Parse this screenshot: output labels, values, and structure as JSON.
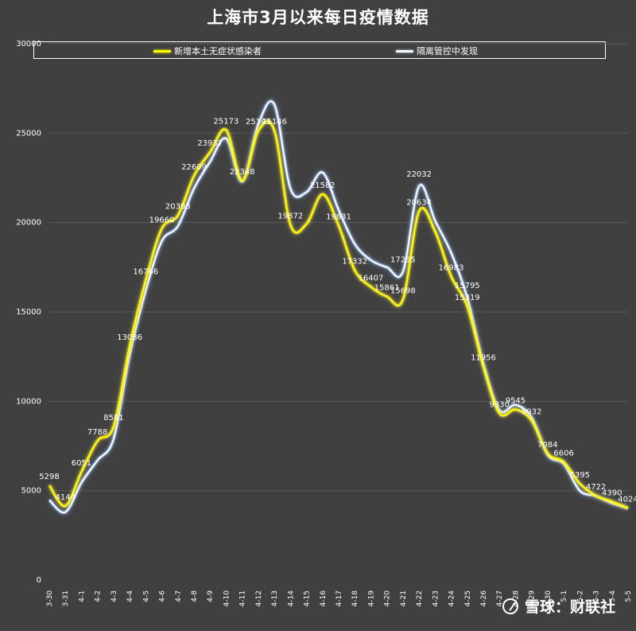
{
  "chart_data": {
    "type": "line",
    "title": "上海市3月以来每日疫情数据",
    "categories": [
      "3-30",
      "3-31",
      "4-1",
      "4-2",
      "4-3",
      "4-4",
      "4-5",
      "4-6",
      "4-7",
      "4-8",
      "4-9",
      "4-10",
      "4-11",
      "4-12",
      "4-13",
      "4-14",
      "4-15",
      "4-16",
      "4-17",
      "4-18",
      "4-19",
      "4-20",
      "4-21",
      "4-22",
      "4-23",
      "4-24",
      "4-25",
      "4-26",
      "4-27",
      "4-28",
      "4-29",
      "4-30",
      "5-1",
      "5-2",
      "5-3",
      "5-4",
      "5-5"
    ],
    "ylim": [
      0,
      30000
    ],
    "yticks": [
      0,
      5000,
      10000,
      15000,
      20000,
      25000,
      30000
    ],
    "legend_position": "top",
    "grid": true,
    "series": [
      {
        "name": "新增本土无症状感染者",
        "color": "#ffff00",
        "values": [
          5298,
          4144,
          6051,
          7788,
          8581,
          13086,
          16766,
          19660,
          20398,
          22609,
          23937,
          25173,
          22348,
          25141,
          25146,
          19872,
          19923,
          21582,
          19831,
          17332,
          16407,
          15861,
          15698,
          20634,
          19500,
          16983,
          15319,
          11956,
          9330,
          9545,
          8932,
          7084,
          6606,
          5395,
          4722,
          4390,
          4024
        ]
      },
      {
        "name": "隔离管控中发现",
        "color": "#ffffff",
        "values": [
          4477,
          3800,
          5450,
          6700,
          7900,
          12600,
          16200,
          18960,
          19800,
          21900,
          23400,
          24700,
          22300,
          25500,
          26600,
          21900,
          21700,
          22800,
          20700,
          18800,
          17900,
          17500,
          17255,
          22032,
          20100,
          18300,
          15795,
          12100,
          9500,
          9800,
          9100,
          7000,
          6500,
          5000,
          4700,
          4300,
          4024
        ]
      }
    ],
    "labels": [
      {
        "text": "5298",
        "s": 0,
        "i": 0
      },
      {
        "text": "4144",
        "s": 0,
        "i": 1
      },
      {
        "text": "6051",
        "s": 0,
        "i": 2
      },
      {
        "text": "7788",
        "s": 0,
        "i": 3
      },
      {
        "text": "8581",
        "s": 0,
        "i": 4
      },
      {
        "text": "13086",
        "s": 0,
        "i": 5
      },
      {
        "text": "16766",
        "s": 0,
        "i": 6
      },
      {
        "text": "19660",
        "s": 0,
        "i": 7
      },
      {
        "text": "20398",
        "s": 0,
        "i": 8
      },
      {
        "text": "22609",
        "s": 0,
        "i": 9
      },
      {
        "text": "23937",
        "s": 0,
        "i": 10
      },
      {
        "text": "25173",
        "s": 0,
        "i": 11
      },
      {
        "text": "22348",
        "s": 0,
        "i": 12
      },
      {
        "text": "25141",
        "s": 0,
        "i": 13
      },
      {
        "text": "25146",
        "s": 0,
        "i": 14
      },
      {
        "text": "19872",
        "s": 0,
        "i": 15
      },
      {
        "text": "21582",
        "s": 0,
        "i": 17
      },
      {
        "text": "19831",
        "s": 0,
        "i": 18
      },
      {
        "text": "17332",
        "s": 0,
        "i": 19
      },
      {
        "text": "16407",
        "s": 0,
        "i": 20
      },
      {
        "text": "15861",
        "s": 0,
        "i": 21
      },
      {
        "text": "17255",
        "s": 1,
        "i": 22
      },
      {
        "text": "15698",
        "s": 0,
        "i": 22
      },
      {
        "text": "20634",
        "s": 0,
        "i": 23
      },
      {
        "text": "22032",
        "s": 1,
        "i": 23
      },
      {
        "text": "16983",
        "s": 0,
        "i": 25
      },
      {
        "text": "15795",
        "s": 1,
        "i": 26
      },
      {
        "text": "15319",
        "s": 0,
        "i": 26
      },
      {
        "text": "11956",
        "s": 0,
        "i": 27
      },
      {
        "text": "9330",
        "s": 0,
        "i": 28
      },
      {
        "text": "9545",
        "s": 0,
        "i": 29
      },
      {
        "text": "8932",
        "s": 0,
        "i": 30
      },
      {
        "text": "7084",
        "s": 0,
        "i": 31
      },
      {
        "text": "6606",
        "s": 0,
        "i": 32
      },
      {
        "text": "5395",
        "s": 0,
        "i": 33
      },
      {
        "text": "4722",
        "s": 0,
        "i": 34
      },
      {
        "text": "4390",
        "s": 0,
        "i": 35
      },
      {
        "text": "4024",
        "s": 0,
        "i": 36
      }
    ]
  },
  "watermark": {
    "text": "雪球：财联社"
  }
}
